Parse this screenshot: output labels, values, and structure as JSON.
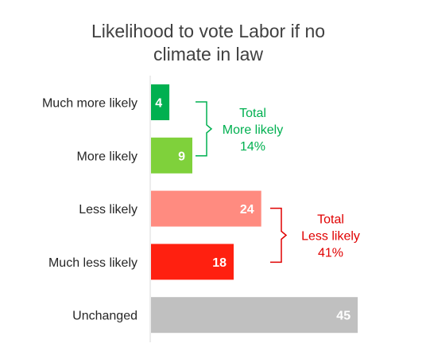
{
  "chart_data": {
    "type": "bar",
    "orientation": "horizontal",
    "title": [
      "Likelihood to vote Labor if no",
      "climate in law"
    ],
    "categories": [
      "Much more likely",
      "More likely",
      "Less likely",
      "Much less likely",
      "Unchanged"
    ],
    "values": [
      4,
      9,
      24,
      18,
      45
    ],
    "colors": [
      "#00b050",
      "#7fd13b",
      "#ff8b80",
      "#ff2010",
      "#c0c0c0"
    ],
    "xlim": [
      0,
      50
    ],
    "grid": false,
    "legend": "none",
    "annotations": [
      {
        "lines": [
          "Total",
          "More likely",
          "14%"
        ],
        "groups": [
          0,
          1
        ],
        "color": "#00b050"
      },
      {
        "lines": [
          "Total",
          "Less likely",
          "41%"
        ],
        "groups": [
          2,
          3
        ],
        "color": "#e00000"
      }
    ]
  }
}
